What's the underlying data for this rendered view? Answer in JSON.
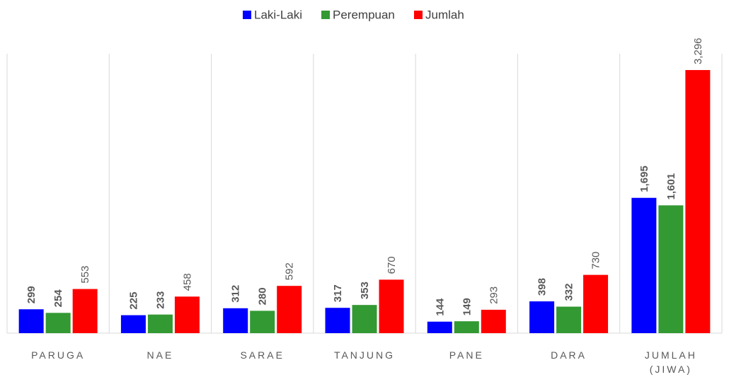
{
  "chart_data": {
    "type": "bar",
    "categories": [
      "PARUGA",
      "NAE",
      "SARAE",
      "TANJUNG",
      "PANE",
      "DARA",
      "JUMLAH (JIWA)"
    ],
    "series": [
      {
        "name": "Laki-Laki",
        "color": "#0000ff",
        "values": [
          299,
          225,
          312,
          317,
          144,
          398,
          1695
        ],
        "value_labels": [
          "299",
          "225",
          "312",
          "317",
          "144",
          "398",
          "1,695"
        ]
      },
      {
        "name": "Perempuan",
        "color": "#339933",
        "values": [
          254,
          233,
          280,
          353,
          149,
          332,
          1601
        ],
        "value_labels": [
          "254",
          "233",
          "280",
          "353",
          "149",
          "332",
          "1,601"
        ]
      },
      {
        "name": "Jumlah",
        "color": "#ff0000",
        "values": [
          553,
          458,
          592,
          670,
          293,
          730,
          3296
        ],
        "value_labels": [
          "553",
          "458",
          "592",
          "670",
          "293",
          "730",
          "3,296"
        ]
      }
    ],
    "ylim": [
      0,
      3500
    ],
    "legend": "top"
  }
}
